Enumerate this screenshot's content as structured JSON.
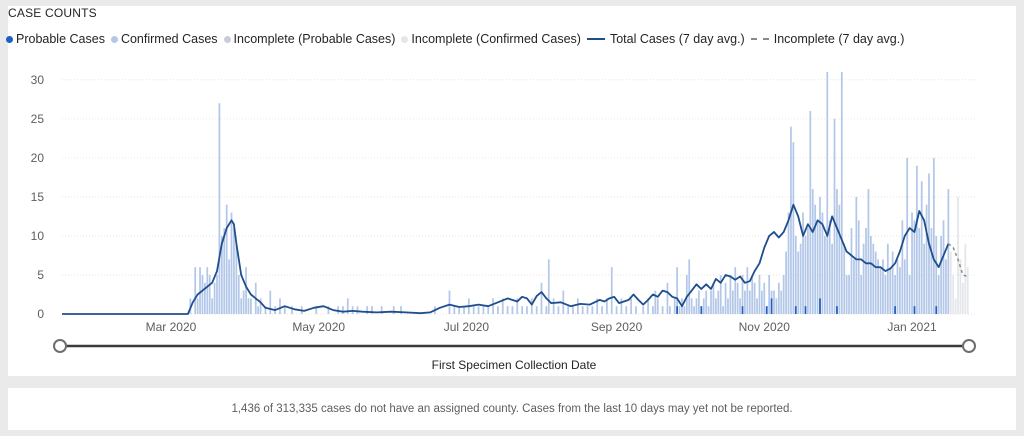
{
  "card": {
    "title": "CASE COUNTS",
    "slider_label": "First Specimen Collection Date"
  },
  "legend": [
    {
      "label": "Probable Cases",
      "kind": "dot",
      "color": "#1f5fbf"
    },
    {
      "label": "Confirmed Cases",
      "kind": "dot",
      "color": "#b3c7e8"
    },
    {
      "label": "Incomplete (Probable Cases)",
      "kind": "dot",
      "color": "#c8cdd6"
    },
    {
      "label": "Incomplete (Confirmed Cases)",
      "kind": "dot",
      "color": "#e4e6ea"
    },
    {
      "label": "Total Cases (7 day avg.)",
      "kind": "line",
      "color": "#1f4e8c"
    },
    {
      "label": "Incomplete (7 day avg.)",
      "kind": "dash",
      "color": "#8a8a8a"
    }
  ],
  "footer": {
    "note": "1,436 of 313,335 cases do not have an assigned county. Cases from the last 10 days may yet not be reported."
  },
  "chart_data": {
    "type": "bar",
    "title": "CASE COUNTS",
    "xlabel": "First Specimen Collection Date",
    "ylabel": "",
    "ylim": [
      0,
      31
    ],
    "yticks": [
      0,
      5,
      10,
      15,
      20,
      25,
      30
    ],
    "xticks": [
      {
        "day": 45,
        "label": "Mar 2020"
      },
      {
        "day": 106,
        "label": "May 2020"
      },
      {
        "day": 167,
        "label": "Jul 2020"
      },
      {
        "day": 229,
        "label": "Sep 2020"
      },
      {
        "day": 290,
        "label": "Nov 2020"
      },
      {
        "day": 351,
        "label": "Jan 2021"
      }
    ],
    "x_range_days": [
      0,
      377
    ],
    "colors": {
      "confirmed": "#b3c7e8",
      "probable": "#1f5fbf",
      "incomplete_confirmed": "#e4e6ea",
      "incomplete_probable": "#c8cdd6",
      "avg": "#1f4e8c",
      "avg_incomplete": "#8a8a8a",
      "grid": "#e6e6e6"
    },
    "incomplete_start_day": 367,
    "bars": [
      [
        53,
        2
      ],
      [
        55,
        6
      ],
      [
        56,
        2
      ],
      [
        57,
        6
      ],
      [
        58,
        5
      ],
      [
        59,
        4
      ],
      [
        60,
        6
      ],
      [
        61,
        5
      ],
      [
        62,
        2
      ],
      [
        63,
        4
      ],
      [
        64,
        5
      ],
      [
        65,
        27
      ],
      [
        66,
        10
      ],
      [
        67,
        11
      ],
      [
        68,
        14
      ],
      [
        69,
        7
      ],
      [
        70,
        13
      ],
      [
        71,
        11
      ],
      [
        72,
        9
      ],
      [
        73,
        5
      ],
      [
        74,
        2
      ],
      [
        75,
        3
      ],
      [
        76,
        6
      ],
      [
        77,
        2
      ],
      [
        78,
        2
      ],
      [
        80,
        4
      ],
      [
        81,
        1
      ],
      [
        82,
        2
      ],
      [
        84,
        1
      ],
      [
        86,
        3
      ],
      [
        88,
        1
      ],
      [
        90,
        2
      ],
      [
        92,
        1
      ],
      [
        95,
        1
      ],
      [
        99,
        1
      ],
      [
        105,
        1
      ],
      [
        110,
        1
      ],
      [
        114,
        1
      ],
      [
        116,
        1
      ],
      [
        118,
        2
      ],
      [
        120,
        1
      ],
      [
        122,
        1
      ],
      [
        126,
        1
      ],
      [
        128,
        1
      ],
      [
        132,
        1
      ],
      [
        137,
        1
      ],
      [
        140,
        1
      ],
      [
        154,
        1
      ],
      [
        160,
        3
      ],
      [
        162,
        1
      ],
      [
        164,
        1
      ],
      [
        166,
        1
      ],
      [
        168,
        2
      ],
      [
        170,
        1
      ],
      [
        172,
        1
      ],
      [
        174,
        1
      ],
      [
        176,
        1
      ],
      [
        178,
        2
      ],
      [
        180,
        1
      ],
      [
        182,
        2
      ],
      [
        184,
        1
      ],
      [
        186,
        1
      ],
      [
        188,
        2
      ],
      [
        190,
        1
      ],
      [
        192,
        1
      ],
      [
        194,
        2
      ],
      [
        196,
        1
      ],
      [
        198,
        4
      ],
      [
        200,
        1
      ],
      [
        201,
        7
      ],
      [
        203,
        2
      ],
      [
        205,
        1
      ],
      [
        207,
        3
      ],
      [
        209,
        1
      ],
      [
        211,
        1
      ],
      [
        213,
        2
      ],
      [
        215,
        1
      ],
      [
        217,
        1
      ],
      [
        219,
        1
      ],
      [
        221,
        2
      ],
      [
        223,
        1
      ],
      [
        225,
        2
      ],
      [
        227,
        6
      ],
      [
        229,
        1
      ],
      [
        231,
        2
      ],
      [
        233,
        1
      ],
      [
        235,
        2
      ],
      [
        237,
        1
      ],
      [
        240,
        1
      ],
      [
        242,
        2
      ],
      [
        244,
        1
      ],
      [
        245,
        3
      ],
      [
        246,
        2
      ],
      [
        248,
        1
      ],
      [
        250,
        4
      ],
      [
        251,
        1
      ],
      [
        253,
        2
      ],
      [
        254,
        6
      ],
      [
        255,
        1
      ],
      [
        256,
        2
      ],
      [
        257,
        1
      ],
      [
        258,
        5
      ],
      [
        259,
        7
      ],
      [
        260,
        2
      ],
      [
        261,
        1
      ],
      [
        262,
        2
      ],
      [
        263,
        3
      ],
      [
        264,
        1
      ],
      [
        265,
        2
      ],
      [
        266,
        3
      ],
      [
        267,
        1
      ],
      [
        268,
        3
      ],
      [
        269,
        4
      ],
      [
        270,
        2
      ],
      [
        271,
        3
      ],
      [
        272,
        5
      ],
      [
        273,
        1
      ],
      [
        274,
        4
      ],
      [
        275,
        2
      ],
      [
        276,
        5
      ],
      [
        277,
        3
      ],
      [
        278,
        6
      ],
      [
        279,
        4
      ],
      [
        280,
        2
      ],
      [
        281,
        5
      ],
      [
        282,
        3
      ],
      [
        283,
        6
      ],
      [
        284,
        3
      ],
      [
        285,
        5
      ],
      [
        286,
        4
      ],
      [
        287,
        2
      ],
      [
        288,
        5
      ],
      [
        289,
        3
      ],
      [
        290,
        4
      ],
      [
        291,
        1
      ],
      [
        292,
        5
      ],
      [
        293,
        3
      ],
      [
        294,
        3
      ],
      [
        295,
        2
      ],
      [
        296,
        4
      ],
      [
        297,
        3
      ],
      [
        298,
        5
      ],
      [
        299,
        8
      ],
      [
        300,
        13
      ],
      [
        301,
        24
      ],
      [
        302,
        22
      ],
      [
        303,
        10
      ],
      [
        304,
        8
      ],
      [
        305,
        9
      ],
      [
        306,
        13
      ],
      [
        307,
        10
      ],
      [
        308,
        11
      ],
      [
        309,
        26
      ],
      [
        310,
        16
      ],
      [
        311,
        14
      ],
      [
        312,
        12
      ],
      [
        313,
        15
      ],
      [
        314,
        13
      ],
      [
        315,
        10
      ],
      [
        316,
        31
      ],
      [
        317,
        12
      ],
      [
        318,
        9
      ],
      [
        319,
        25
      ],
      [
        320,
        16
      ],
      [
        321,
        14
      ],
      [
        322,
        31
      ],
      [
        323,
        9
      ],
      [
        324,
        5
      ],
      [
        325,
        5
      ],
      [
        326,
        11
      ],
      [
        327,
        7
      ],
      [
        328,
        15
      ],
      [
        329,
        12
      ],
      [
        330,
        5
      ],
      [
        331,
        9
      ],
      [
        332,
        11
      ],
      [
        333,
        16
      ],
      [
        334,
        10
      ],
      [
        335,
        9
      ],
      [
        336,
        8
      ],
      [
        337,
        7
      ],
      [
        338,
        6
      ],
      [
        339,
        7
      ],
      [
        340,
        5
      ],
      [
        341,
        9
      ],
      [
        342,
        6
      ],
      [
        343,
        8
      ],
      [
        344,
        5
      ],
      [
        345,
        7
      ],
      [
        346,
        6
      ],
      [
        347,
        12
      ],
      [
        348,
        7
      ],
      [
        349,
        20
      ],
      [
        350,
        5
      ],
      [
        351,
        13
      ],
      [
        352,
        12
      ],
      [
        353,
        19
      ],
      [
        354,
        11
      ],
      [
        355,
        17
      ],
      [
        356,
        9
      ],
      [
        357,
        14
      ],
      [
        358,
        18
      ],
      [
        359,
        11
      ],
      [
        360,
        20
      ],
      [
        361,
        10
      ],
      [
        362,
        5
      ],
      [
        363,
        10
      ],
      [
        364,
        12
      ],
      [
        365,
        7
      ],
      [
        366,
        16
      ],
      [
        367,
        8
      ],
      [
        368,
        5
      ],
      [
        369,
        2
      ],
      [
        370,
        15
      ],
      [
        371,
        7
      ],
      [
        372,
        4
      ],
      [
        373,
        9
      ],
      [
        374,
        6
      ]
    ],
    "probable_bars": [
      [
        254,
        1
      ],
      [
        264,
        1
      ],
      [
        281,
        1
      ],
      [
        291,
        1
      ],
      [
        293,
        2
      ],
      [
        303,
        1
      ],
      [
        307,
        1
      ],
      [
        313,
        2
      ],
      [
        320,
        1
      ],
      [
        344,
        1
      ],
      [
        352,
        1
      ],
      [
        361,
        1
      ]
    ],
    "avg_line": [
      [
        0,
        0
      ],
      [
        52,
        0
      ],
      [
        54,
        1.5
      ],
      [
        56,
        2.5
      ],
      [
        58,
        3
      ],
      [
        60,
        3.5
      ],
      [
        62,
        4
      ],
      [
        64,
        5.5
      ],
      [
        66,
        9
      ],
      [
        68,
        11
      ],
      [
        70,
        12
      ],
      [
        71,
        11.5
      ],
      [
        72,
        9
      ],
      [
        74,
        5
      ],
      [
        76,
        3.5
      ],
      [
        78,
        2.5
      ],
      [
        80,
        2
      ],
      [
        82,
        1.5
      ],
      [
        84,
        0.8
      ],
      [
        88,
        0.5
      ],
      [
        92,
        1
      ],
      [
        96,
        0.6
      ],
      [
        100,
        0.4
      ],
      [
        104,
        0.8
      ],
      [
        108,
        1
      ],
      [
        112,
        0.5
      ],
      [
        116,
        0.3
      ],
      [
        120,
        0.4
      ],
      [
        124,
        0.3
      ],
      [
        130,
        0.2
      ],
      [
        136,
        0.3
      ],
      [
        142,
        0.2
      ],
      [
        148,
        0.1
      ],
      [
        152,
        0.2
      ],
      [
        156,
        0.8
      ],
      [
        160,
        1.2
      ],
      [
        164,
        0.9
      ],
      [
        168,
        1
      ],
      [
        172,
        1.2
      ],
      [
        176,
        1
      ],
      [
        180,
        1.5
      ],
      [
        184,
        2
      ],
      [
        188,
        1.6
      ],
      [
        190,
        2.2
      ],
      [
        192,
        2
      ],
      [
        194,
        1.2
      ],
      [
        196,
        2.3
      ],
      [
        198,
        2.8
      ],
      [
        200,
        2
      ],
      [
        202,
        1.4
      ],
      [
        206,
        1.5
      ],
      [
        210,
        1
      ],
      [
        214,
        1.3
      ],
      [
        218,
        1.2
      ],
      [
        222,
        1.8
      ],
      [
        224,
        1.6
      ],
      [
        226,
        2
      ],
      [
        228,
        2.2
      ],
      [
        230,
        1.4
      ],
      [
        234,
        1.8
      ],
      [
        236,
        2.5
      ],
      [
        238,
        1.8
      ],
      [
        240,
        1.2
      ],
      [
        242,
        1.8
      ],
      [
        244,
        2.5
      ],
      [
        246,
        2.2
      ],
      [
        248,
        3
      ],
      [
        250,
        2.8
      ],
      [
        252,
        2.2
      ],
      [
        254,
        2
      ],
      [
        256,
        1
      ],
      [
        258,
        2.2
      ],
      [
        260,
        3
      ],
      [
        262,
        3.8
      ],
      [
        264,
        3.2
      ],
      [
        266,
        3.8
      ],
      [
        268,
        3.2
      ],
      [
        270,
        4.5
      ],
      [
        272,
        4
      ],
      [
        274,
        5
      ],
      [
        276,
        4.8
      ],
      [
        278,
        4.4
      ],
      [
        280,
        4.8
      ],
      [
        282,
        4
      ],
      [
        284,
        4.2
      ],
      [
        286,
        5.5
      ],
      [
        288,
        6.5
      ],
      [
        290,
        8.5
      ],
      [
        292,
        10
      ],
      [
        294,
        10.5
      ],
      [
        296,
        9.8
      ],
      [
        298,
        10.5
      ],
      [
        300,
        12
      ],
      [
        302,
        14
      ],
      [
        304,
        12.5
      ],
      [
        306,
        10
      ],
      [
        308,
        11.5
      ],
      [
        310,
        10.5
      ],
      [
        312,
        12
      ],
      [
        314,
        11.5
      ],
      [
        316,
        10
      ],
      [
        318,
        12.5
      ],
      [
        320,
        11
      ],
      [
        322,
        9.5
      ],
      [
        324,
        8
      ],
      [
        326,
        7.5
      ],
      [
        328,
        7
      ],
      [
        330,
        7
      ],
      [
        332,
        6.5
      ],
      [
        334,
        6.5
      ],
      [
        336,
        6
      ],
      [
        338,
        6
      ],
      [
        340,
        5.5
      ],
      [
        342,
        5.8
      ],
      [
        344,
        6.5
      ],
      [
        346,
        8
      ],
      [
        348,
        10
      ],
      [
        350,
        11
      ],
      [
        352,
        10.5
      ],
      [
        354,
        13.2
      ],
      [
        356,
        12
      ],
      [
        358,
        9
      ],
      [
        360,
        7
      ],
      [
        362,
        6
      ],
      [
        364,
        7.5
      ],
      [
        366,
        9
      ]
    ],
    "avg_incomplete_line": [
      [
        366,
        9
      ],
      [
        368,
        8.5
      ],
      [
        370,
        7
      ],
      [
        372,
        5
      ],
      [
        374,
        4.8
      ]
    ]
  }
}
